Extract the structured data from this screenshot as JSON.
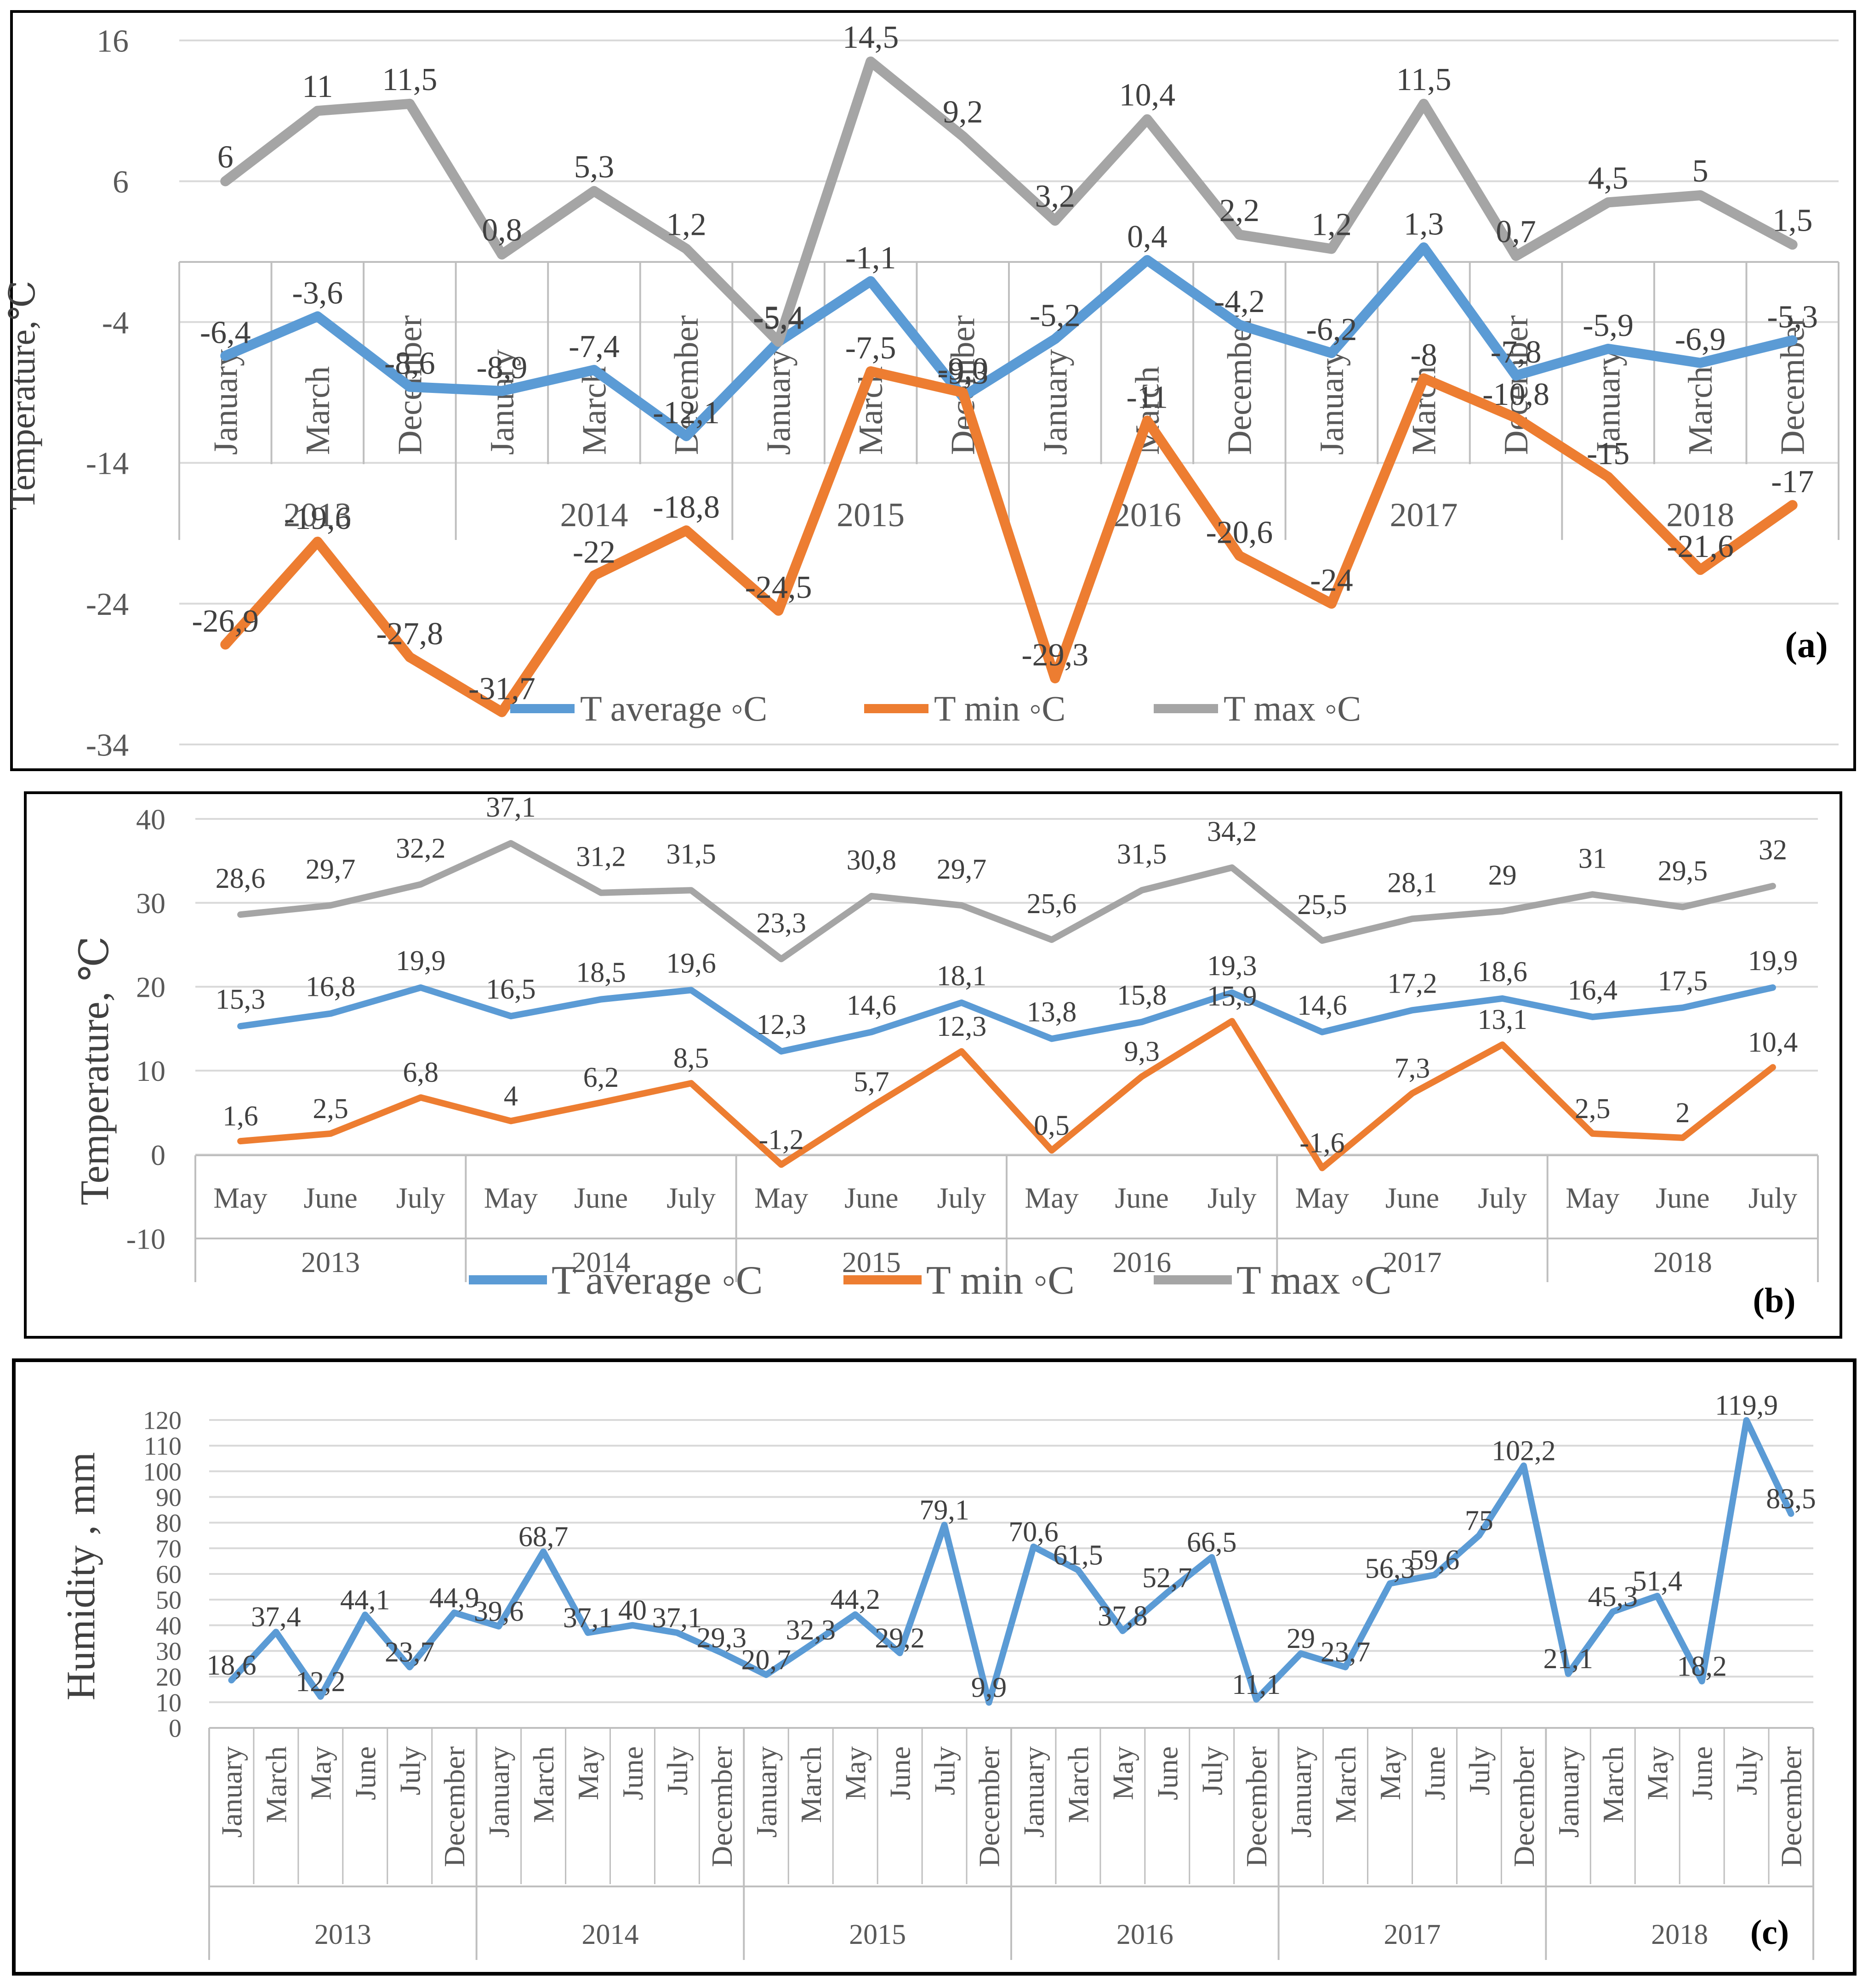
{
  "colors": {
    "avg": "#5B9BD5",
    "min": "#ED7D31",
    "max": "#A5A5A5",
    "grid": "#D9D9D9",
    "axis": "#BFBFBF",
    "text": "#595959",
    "border": "#000000"
  },
  "chart_data": [
    {
      "id": "a",
      "type": "line",
      "panel_label": "(a)",
      "ylabel": "Temperature,℃",
      "ylim": [
        -34,
        16
      ],
      "yticks": [
        16,
        6,
        -4,
        -14,
        -24,
        -34
      ],
      "categories": [
        "January",
        "March",
        "December",
        "January",
        "March",
        "December",
        "January",
        "March",
        "December",
        "January",
        "March",
        "December",
        "January",
        "March",
        "December",
        "January",
        "March",
        "December"
      ],
      "groups": [
        {
          "year": "2013",
          "count": 3
        },
        {
          "year": "2014",
          "count": 3
        },
        {
          "year": "2015",
          "count": 3
        },
        {
          "year": "2016",
          "count": 3
        },
        {
          "year": "2017",
          "count": 3
        },
        {
          "year": "2018",
          "count": 3
        }
      ],
      "series": [
        {
          "key": "avg",
          "name": "T average ◦C",
          "values": [
            -6.4,
            -3.6,
            -8.6,
            -8.9,
            -7.4,
            -12.1,
            -5.4,
            -1.1,
            -9.3,
            -5.2,
            0.4,
            -4.2,
            -6.2,
            1.3,
            -7.8,
            -5.9,
            -6.9,
            -5.3
          ],
          "labels": [
            "-6,4",
            "-3,6",
            "-8,6",
            "-8,9",
            "-7,4",
            "-12,1",
            "-5,4",
            "-1,1",
            "-9,3",
            "-5,2",
            "0,4",
            "-4,2",
            "-6,2",
            "1,3",
            "-7,8",
            "-5,9",
            "-6,9",
            "-5,3"
          ]
        },
        {
          "key": "min",
          "name": "T min ◦C",
          "values": [
            -26.9,
            -19.6,
            -27.8,
            -31.7,
            -22,
            -18.8,
            -24.5,
            -7.5,
            -9.0,
            -29.3,
            -11,
            -20.6,
            -24,
            -8,
            -10.8,
            -15,
            -21.6,
            -17
          ],
          "labels": [
            "-26,9",
            "-19,6",
            "-27,8",
            "-31,7",
            "-22",
            "-18,8",
            "-24,5",
            "-7,5",
            "-9,0",
            "-29,3",
            "-11",
            "-20,6",
            "-24",
            "-8",
            "-10,8",
            "-15",
            "-21,6",
            "-17"
          ]
        },
        {
          "key": "max",
          "name": "T max ◦C",
          "values": [
            6,
            11,
            11.5,
            0.8,
            5.3,
            1.2,
            -5.4,
            14.5,
            9.2,
            3.2,
            10.4,
            2.2,
            1.2,
            11.5,
            0.7,
            4.5,
            5,
            1.5
          ],
          "labels": [
            "6",
            "11",
            "11,5",
            "0,8",
            "5,3",
            "1,2",
            "-5,4",
            "14,5",
            "9,2",
            "3,2",
            "10,4",
            "2,2",
            "1,2",
            "11,5",
            "0,7",
            "4,5",
            "5",
            "1,5"
          ]
        }
      ]
    },
    {
      "id": "b",
      "type": "line",
      "panel_label": "(b)",
      "ylabel": "Temperature, ℃",
      "ylim": [
        -10,
        40
      ],
      "yticks": [
        40,
        30,
        20,
        10,
        0,
        -10
      ],
      "categories": [
        "May",
        "June",
        "July",
        "May",
        "June",
        "July",
        "May",
        "June",
        "July",
        "May",
        "June",
        "July",
        "May",
        "June",
        "July",
        "May",
        "June",
        "July"
      ],
      "groups": [
        {
          "year": "2013",
          "count": 3
        },
        {
          "year": "2014",
          "count": 3
        },
        {
          "year": "2015",
          "count": 3
        },
        {
          "year": "2016",
          "count": 3
        },
        {
          "year": "2017",
          "count": 3
        },
        {
          "year": "2018",
          "count": 3
        }
      ],
      "series": [
        {
          "key": "avg",
          "name": "T average ◦C",
          "values": [
            15.3,
            16.8,
            19.9,
            16.5,
            18.5,
            19.6,
            12.3,
            14.6,
            18.1,
            13.8,
            15.8,
            19.3,
            14.6,
            17.2,
            18.6,
            16.4,
            17.5,
            19.9
          ],
          "labels": [
            "15,3",
            "16,8",
            "19,9",
            "16,5",
            "18,5",
            "19,6",
            "12,3",
            "14,6",
            "18,1",
            "13,8",
            "15,8",
            "19,3",
            "14,6",
            "17,2",
            "18,6",
            "16,4",
            "17,5",
            "19,9"
          ]
        },
        {
          "key": "min",
          "name": "T min ◦C",
          "values": [
            1.6,
            2.5,
            6.8,
            4,
            6.2,
            8.5,
            -1.2,
            5.7,
            12.3,
            0.5,
            9.3,
            15.9,
            -1.6,
            7.3,
            13.1,
            2.5,
            2,
            10.4
          ],
          "labels": [
            "1,6",
            "2,5",
            "6,8",
            "4",
            "6,2",
            "8,5",
            "-1,2",
            "5,7",
            "12,3",
            "0,5",
            "9,3",
            "15,9",
            "-1,6",
            "7,3",
            "13,1",
            "2,5",
            "2",
            "10,4"
          ]
        },
        {
          "key": "max",
          "name": "T max ◦C",
          "values": [
            28.6,
            29.7,
            32.2,
            37.1,
            31.2,
            31.5,
            23.3,
            30.8,
            29.7,
            25.6,
            31.5,
            34.2,
            25.5,
            28.1,
            29,
            31,
            29.5,
            32
          ],
          "labels": [
            "28,6",
            "29,7",
            "32,2",
            "37,1",
            "31,2",
            "31,5",
            "23,3",
            "30,8",
            "29,7",
            "25,6",
            "31,5",
            "34,2",
            "25,5",
            "28,1",
            "29",
            "31",
            "29,5",
            "32"
          ]
        }
      ]
    },
    {
      "id": "c",
      "type": "line",
      "panel_label": "(c)",
      "ylabel": "Humidity , mm",
      "ylim": [
        0,
        120
      ],
      "yticks": [
        120,
        110,
        100,
        90,
        80,
        70,
        60,
        50,
        40,
        30,
        20,
        10,
        0
      ],
      "categories": [
        "January",
        "March",
        "May",
        "June",
        "July",
        "December",
        "January",
        "March",
        "May",
        "June",
        "July",
        "December",
        "January",
        "March",
        "May",
        "June",
        "July",
        "December",
        "January",
        "March",
        "May",
        "June",
        "July",
        "December",
        "January",
        "March",
        "May",
        "June",
        "July",
        "December",
        "January",
        "March",
        "May",
        "June",
        "July",
        "December"
      ],
      "groups": [
        {
          "year": "2013",
          "count": 6
        },
        {
          "year": "2014",
          "count": 6
        },
        {
          "year": "2015",
          "count": 6
        },
        {
          "year": "2016",
          "count": 6
        },
        {
          "year": "2017",
          "count": 6
        },
        {
          "year": "2018",
          "count": 6
        }
      ],
      "series": [
        {
          "key": "avg",
          "name": "Humidity",
          "values": [
            18.6,
            37.4,
            12.2,
            44.1,
            23.7,
            44.9,
            39.6,
            68.7,
            37.1,
            40,
            37.1,
            29.3,
            20.7,
            32.3,
            44.2,
            29.2,
            79.1,
            9.9,
            70.6,
            61.5,
            37.8,
            52.7,
            66.5,
            11.1,
            29,
            23.7,
            56.3,
            59.6,
            75,
            102.2,
            21.1,
            45.3,
            51.4,
            18.2,
            119.9,
            83.5
          ],
          "labels": [
            "18,6",
            "37,4",
            "12,2",
            "44,1",
            "23,7",
            "44,9",
            "39,6",
            "68,7",
            "37,1",
            "40",
            "37,1",
            "29,3",
            "20,7",
            "32,3",
            "44,2",
            "29,2",
            "79,1",
            "9,9",
            "70,6",
            "61,5",
            "37,8",
            "52,7",
            "66,5",
            "11,1",
            "29",
            "23,7",
            "56,3",
            "59,6",
            "75",
            "102,2",
            "21,1",
            "45,3",
            "51,4",
            "18,2",
            "119,9",
            "83,5"
          ]
        }
      ]
    }
  ]
}
